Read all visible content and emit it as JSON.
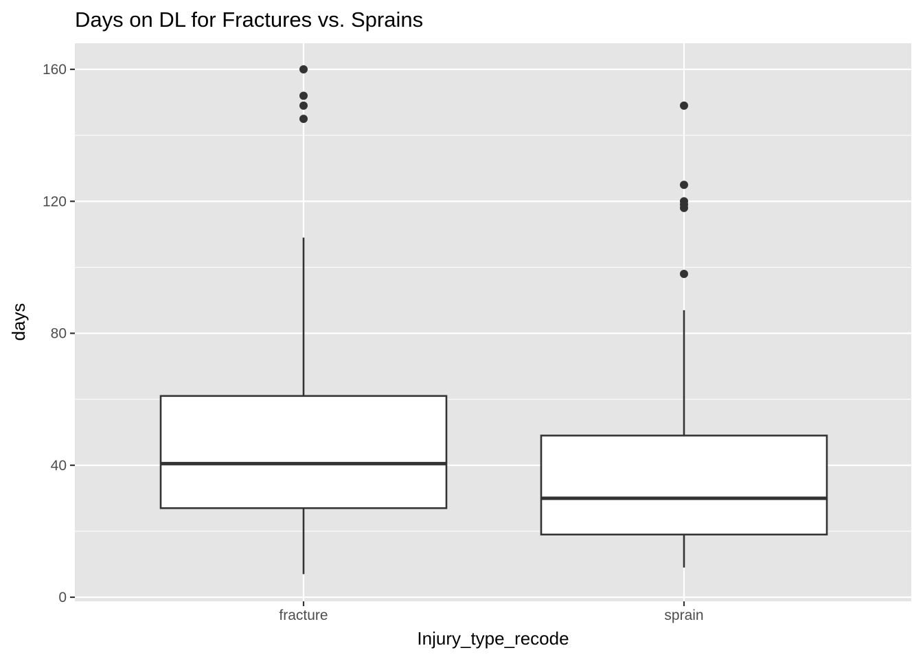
{
  "chart_data": {
    "type": "boxplot",
    "title": "Days on DL for Fractures vs. Sprains",
    "xlabel": "Injury_type_recode",
    "ylabel": "days",
    "ylim": [
      -1,
      168
    ],
    "y_ticks": [
      0,
      40,
      80,
      120,
      160
    ],
    "grid": true,
    "categories": [
      "fracture",
      "sprain"
    ],
    "boxes": [
      {
        "category": "fracture",
        "whisker_low": 7,
        "q1": 27,
        "median": 40.5,
        "q3": 61,
        "whisker_high": 109,
        "outliers": [
          145,
          149,
          152,
          160
        ]
      },
      {
        "category": "sprain",
        "whisker_low": 9,
        "q1": 19,
        "median": 30,
        "q3": 49,
        "whisker_high": 87,
        "outliers": [
          98,
          118,
          119,
          120,
          125,
          149
        ]
      }
    ],
    "colors": {
      "panel": "#e5e5e5",
      "grid": "#ffffff",
      "box_fill": "#ffffff",
      "box_line": "#333333",
      "point": "#333333"
    }
  }
}
